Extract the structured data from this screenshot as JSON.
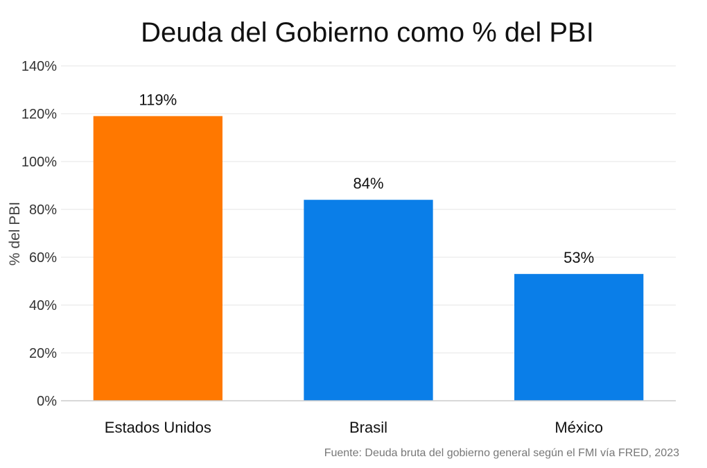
{
  "chart_data": {
    "type": "bar",
    "title": "Deuda del Gobierno como % del PBI",
    "ylabel": "% del PBI",
    "xlabel": "",
    "categories": [
      "Estados Unidos",
      "Brasil",
      "México"
    ],
    "values": [
      119,
      84,
      53
    ],
    "data_labels": [
      "119%",
      "84%",
      "53%"
    ],
    "bar_colors": [
      "#ff7800",
      "#0a7ee8",
      "#0a7ee8"
    ],
    "ylim": [
      0,
      140
    ],
    "yticks": [
      0,
      20,
      40,
      60,
      80,
      100,
      120,
      140
    ],
    "ytick_labels": [
      "0%",
      "20%",
      "40%",
      "60%",
      "80%",
      "100%",
      "120%",
      "140%"
    ],
    "grid": true,
    "legend": "none",
    "source": "Fuente: Deuda bruta del gobierno general según el FMI vía FRED, 2023"
  }
}
